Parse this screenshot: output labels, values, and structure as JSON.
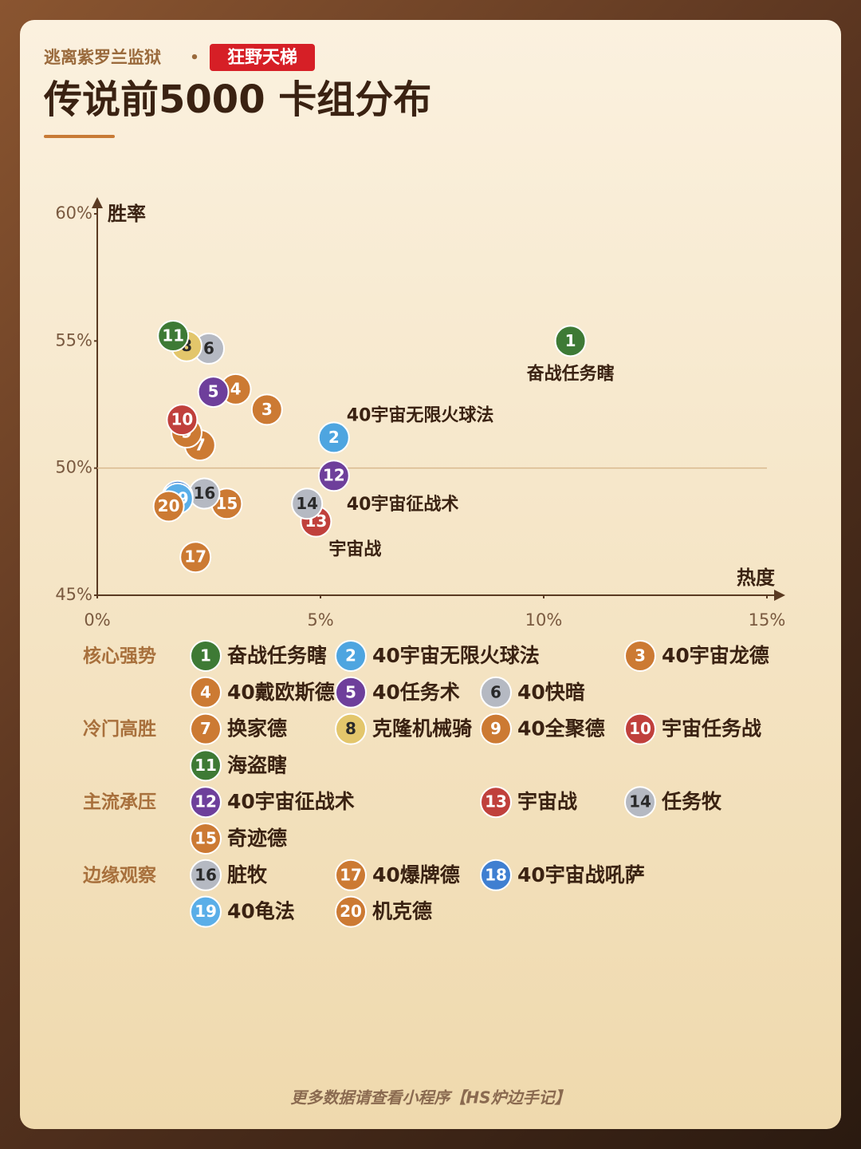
{
  "chart_data": {
    "type": "scatter",
    "kicker": "逃离紫罗兰监狱",
    "kicker_sep": "•",
    "badge": "狂野天梯",
    "title": "传说前5000 卡组分布",
    "y_label": "胜率",
    "x_label": "热度",
    "xlim": [
      0,
      15
    ],
    "xticks": [
      {
        "value": 0,
        "label": "0%"
      },
      {
        "value": 5,
        "label": "5%"
      },
      {
        "value": 10,
        "label": "10%"
      },
      {
        "value": 15,
        "label": "15%"
      }
    ],
    "ylim": [
      45,
      60
    ],
    "yticks": [
      {
        "value": 45,
        "label": "45%"
      },
      {
        "value": 50,
        "label": "50%"
      },
      {
        "value": 55,
        "label": "55%"
      },
      {
        "value": 60,
        "label": "60%"
      }
    ],
    "reference_line": 50,
    "annotations": [
      "奋战任务瞎",
      "40宇宙无限火球法",
      "40宇宙征战术",
      "宇宙战"
    ],
    "groups": [
      {
        "name": "核心强势",
        "series": [
          {
            "id": 1,
            "name": "奋战任务瞎",
            "color": "#3e7a35",
            "x": [
              10.6
            ],
            "values": [
              55.0
            ]
          },
          {
            "id": 2,
            "name": "40宇宙无限火球法",
            "color": "#4ea5e0",
            "x": [
              5.3
            ],
            "values": [
              51.2
            ]
          },
          {
            "id": 3,
            "name": "40宇宙龙德",
            "color": "#cc7a33",
            "x": [
              3.8
            ],
            "values": [
              52.3
            ]
          },
          {
            "id": 4,
            "name": "40戴欧斯德",
            "color": "#cc7a33",
            "x": [
              3.1
            ],
            "values": [
              53.1
            ]
          },
          {
            "id": 5,
            "name": "40任务术",
            "color": "#6e3f9b",
            "x": [
              2.6
            ],
            "values": [
              53.0
            ]
          },
          {
            "id": 6,
            "name": "40快暗",
            "color": "#b5b9c2",
            "x": [
              2.5
            ],
            "values": [
              54.7
            ]
          }
        ]
      },
      {
        "name": "冷门高胜",
        "series": [
          {
            "id": 7,
            "name": "换家德",
            "color": "#cc7a33",
            "x": [
              2.3
            ],
            "values": [
              50.9
            ]
          },
          {
            "id": 8,
            "name": "克隆机械骑",
            "color": "#e3c66b",
            "x": [
              2.0
            ],
            "values": [
              54.8
            ]
          },
          {
            "id": 9,
            "name": "40全聚德",
            "color": "#cc7a33",
            "x": [
              2.0
            ],
            "values": [
              51.4
            ]
          },
          {
            "id": 10,
            "name": "宇宙任务战",
            "color": "#c0403c",
            "x": [
              1.9
            ],
            "values": [
              51.9
            ]
          },
          {
            "id": 11,
            "name": "海盗瞎",
            "color": "#3e7a35",
            "x": [
              1.7
            ],
            "values": [
              55.2
            ]
          }
        ]
      },
      {
        "name": "主流承压",
        "series": [
          {
            "id": 12,
            "name": "40宇宙征战术",
            "color": "#6e3f9b",
            "x": [
              5.3
            ],
            "values": [
              49.7
            ]
          },
          {
            "id": 13,
            "name": "宇宙战",
            "color": "#c0403c",
            "x": [
              4.9
            ],
            "values": [
              47.9
            ]
          },
          {
            "id": 14,
            "name": "任务牧",
            "color": "#b5b9c2",
            "x": [
              4.7
            ],
            "values": [
              48.6
            ]
          },
          {
            "id": 15,
            "name": "奇迹德",
            "color": "#cc7a33",
            "x": [
              2.9
            ],
            "values": [
              48.6
            ]
          }
        ]
      },
      {
        "name": "边缘观察",
        "series": [
          {
            "id": 16,
            "name": "脏牧",
            "color": "#b5b9c2",
            "x": [
              2.4
            ],
            "values": [
              49.0
            ]
          },
          {
            "id": 17,
            "name": "40爆牌德",
            "color": "#cc7a33",
            "x": [
              2.2
            ],
            "values": [
              46.5
            ]
          },
          {
            "id": 18,
            "name": "40宇宙战吼萨",
            "color": "#3f7fd1",
            "x": [
              1.8
            ],
            "values": [
              48.9
            ]
          },
          {
            "id": 19,
            "name": "40龟法",
            "color": "#5aaee8",
            "x": [
              1.8
            ],
            "values": [
              48.8
            ]
          },
          {
            "id": 20,
            "name": "机克德",
            "color": "#cc7a33",
            "x": [
              1.6
            ],
            "values": [
              48.5
            ]
          }
        ]
      }
    ],
    "footer": "更多数据请查看小程序【HS炉边手记】"
  }
}
